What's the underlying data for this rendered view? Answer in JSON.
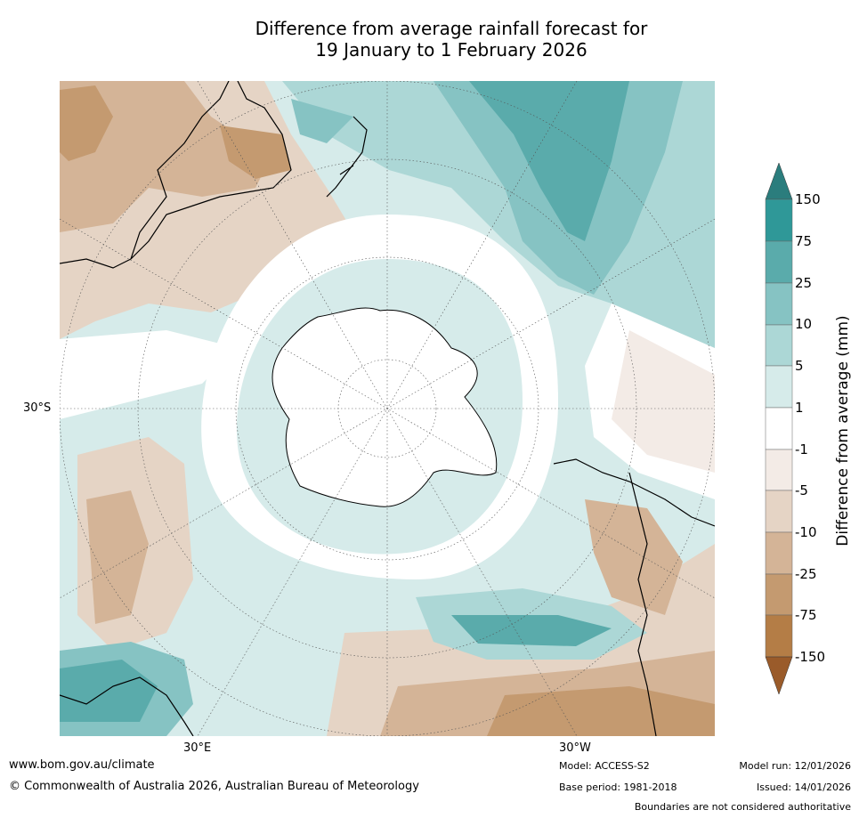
{
  "title": {
    "line1": "Difference from average rainfall forecast for",
    "line2": "19 January to 1 February 2026"
  },
  "map": {
    "axis_labels": {
      "lat": "30°S",
      "lon_left": "30°E",
      "lon_right": "30°W"
    },
    "colors": {
      "p150": "#2b7d7d",
      "p75": "#2f9898",
      "p25": "#5aabab",
      "p10": "#86c3c3",
      "p5": "#acd7d6",
      "p1": "#d6ebea",
      "neutral": "#ffffff",
      "n1": "#f3ebe6",
      "n5": "#e5d4c5",
      "n10": "#d4b497",
      "n25": "#c49a70",
      "n75": "#b47d46",
      "n150": "#9a5b2a",
      "land_line": "#000000",
      "border_line": "#808080"
    }
  },
  "colorbar": {
    "title": "Difference from average (mm)",
    "ticks": [
      "150",
      "75",
      "25",
      "10",
      "5",
      "1",
      "-1",
      "-5",
      "-10",
      "-25",
      "-75",
      "-150"
    ]
  },
  "footer": {
    "url": "www.bom.gov.au/climate",
    "copyright": "© Commonwealth of Australia 2026, Australian Bureau of Meteorology",
    "model": "Model: ACCESS-S2",
    "base_period": "Base period: 1981-2018",
    "model_run": "Model run: 12/01/2026",
    "issued": "Issued: 14/01/2026",
    "disclaimer": "Boundaries are not considered authoritative"
  }
}
